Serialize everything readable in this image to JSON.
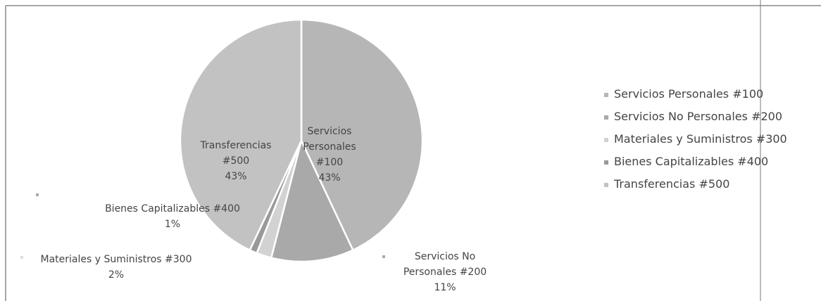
{
  "chart_data": {
    "type": "pie",
    "categories": [
      "Servicios Personales #100",
      "Servicios No Personales #200",
      "Materiales y Suministros #300",
      "Bienes Capitalizables #400",
      "Transferencias #500"
    ],
    "values": [
      43,
      11,
      2,
      1,
      43
    ],
    "value_labels": [
      "43%",
      "11%",
      "2%",
      "1%",
      "43%"
    ],
    "colors": [
      "#b6b6b6",
      "#a9a9a9",
      "#d2d2d2",
      "#999999",
      "#c2c2c2"
    ],
    "legend": "right"
  }
}
